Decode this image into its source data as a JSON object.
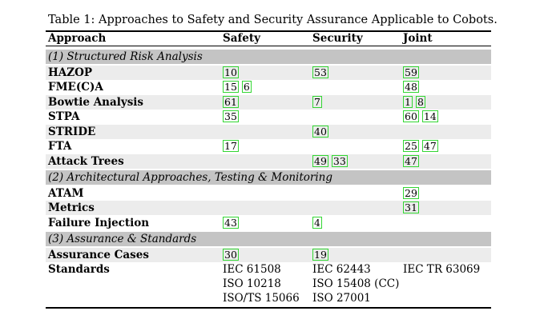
{
  "caption": "Table 1: Approaches to Safety and Security Assurance Applicable to Cobots.",
  "headers": {
    "approach": "Approach",
    "safety": "Safety",
    "security": "Security",
    "joint": "Joint"
  },
  "sections": {
    "s1": "(1) Structured Risk Analysis",
    "s2": "(2) Architectural Approaches, Testing & Monitoring",
    "s3": "(3) Assurance & Standards"
  },
  "rows": {
    "hazop": {
      "name": "HAZOP",
      "safety": [
        "10"
      ],
      "security": [
        "53"
      ],
      "joint": [
        "59"
      ]
    },
    "fmeca": {
      "name": "FME(C)A",
      "safety": [
        "15",
        "6"
      ],
      "security": [],
      "joint": [
        "48"
      ]
    },
    "bowtie": {
      "name": "Bowtie Analysis",
      "safety": [
        "61"
      ],
      "security": [
        "7"
      ],
      "joint": [
        "1",
        "8"
      ]
    },
    "stpa": {
      "name": "STPA",
      "safety": [
        "35"
      ],
      "security": [],
      "joint": [
        "60",
        "14"
      ]
    },
    "stride": {
      "name": "STRIDE",
      "safety": [],
      "security": [
        "40"
      ],
      "joint": []
    },
    "fta": {
      "name": "FTA",
      "safety": [
        "17"
      ],
      "security": [],
      "joint": [
        "25",
        "47"
      ]
    },
    "attack": {
      "name": "Attack Trees",
      "safety": [],
      "security": [
        "49",
        "33"
      ],
      "joint": [
        "47"
      ]
    },
    "atam": {
      "name": "ATAM",
      "safety": [],
      "security": [],
      "joint": [
        "29"
      ]
    },
    "metrics": {
      "name": "Metrics",
      "safety": [],
      "security": [],
      "joint": [
        "31"
      ]
    },
    "failinj": {
      "name": "Failure Injection",
      "safety": [
        "43"
      ],
      "security": [
        "4"
      ],
      "joint": []
    },
    "assurance": {
      "name": "Assurance Cases",
      "safety": [
        "30"
      ],
      "security": [
        "19"
      ],
      "joint": []
    },
    "standards": {
      "name": "Standards",
      "safety": [
        "IEC 61508",
        "ISO 10218",
        "ISO/TS 15066"
      ],
      "security": [
        "IEC 62443",
        "ISO 15408 (CC)",
        "ISO 27001"
      ],
      "joint": [
        "IEC TR 63069"
      ]
    }
  }
}
